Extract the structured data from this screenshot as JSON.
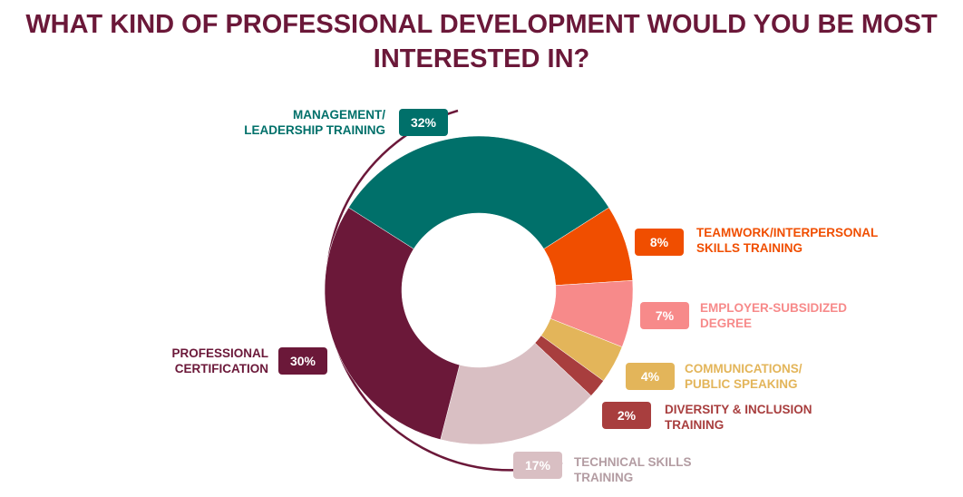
{
  "chart_data": {
    "type": "donut",
    "title": "WHAT KIND OF PROFESSIONAL DEVELOPMENT WOULD YOU BE MOST INTERESTED IN?",
    "categories": [
      "MANAGEMENT/\nLEADERSHIP TRAINING",
      "TEAMWORK/INTERPERSONAL\nSKILLS TRAINING",
      "EMPLOYER-SUBSIDIZED\nDEGREE",
      "COMMUNICATIONS/\nPUBLIC SPEAKING",
      "DIVERSITY & INCLUSION\nTRAINING",
      "TECHNICAL SKILLS\nTRAINING",
      "PROFESSIONAL\nCERTIFICATION"
    ],
    "values": [
      32,
      8,
      7,
      4,
      2,
      17,
      30
    ],
    "value_labels": [
      "32%",
      "8%",
      "7%",
      "4%",
      "2%",
      "17%",
      "30%"
    ],
    "colors": [
      "#00706a",
      "#f04e00",
      "#f78a8a",
      "#e3b55a",
      "#a83e3e",
      "#d9bfc3",
      "#6b1839"
    ]
  }
}
